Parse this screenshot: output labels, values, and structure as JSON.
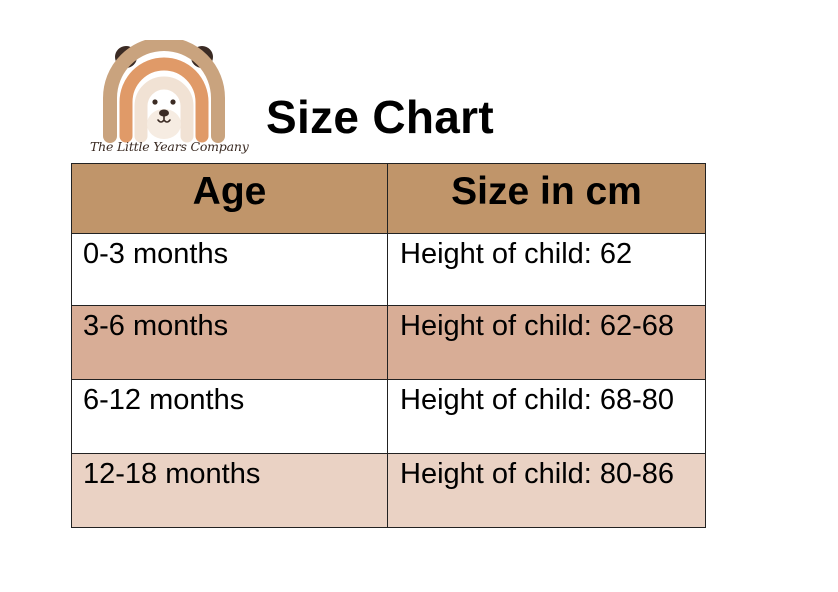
{
  "logo": {
    "brand_text": "The Little Years Company",
    "icon": "bear-rainbow-logo-icon",
    "colors": {
      "outer_arc": "#c9a37e",
      "middle_arc": "#e09a68",
      "inner_arc": "#f1e2d4",
      "ears": "#3b2b24",
      "face": "#f6ece2"
    }
  },
  "title": "Size Chart",
  "table": {
    "headers": [
      "Age",
      "Size in cm"
    ],
    "header_bg": "#c0956a",
    "rows": [
      {
        "age": "0-3 months",
        "size": "Height of child: 62",
        "bg": "#ffffff"
      },
      {
        "age": "3-6 months",
        "size": "Height of child: 62-68",
        "bg": "#d8ad96"
      },
      {
        "age": "6-12 months",
        "size": "Height of child: 68-80",
        "bg": "#ffffff"
      },
      {
        "age": "12-18 months",
        "size": "Height of child: 80-86",
        "bg": "#ead2c4"
      }
    ]
  }
}
